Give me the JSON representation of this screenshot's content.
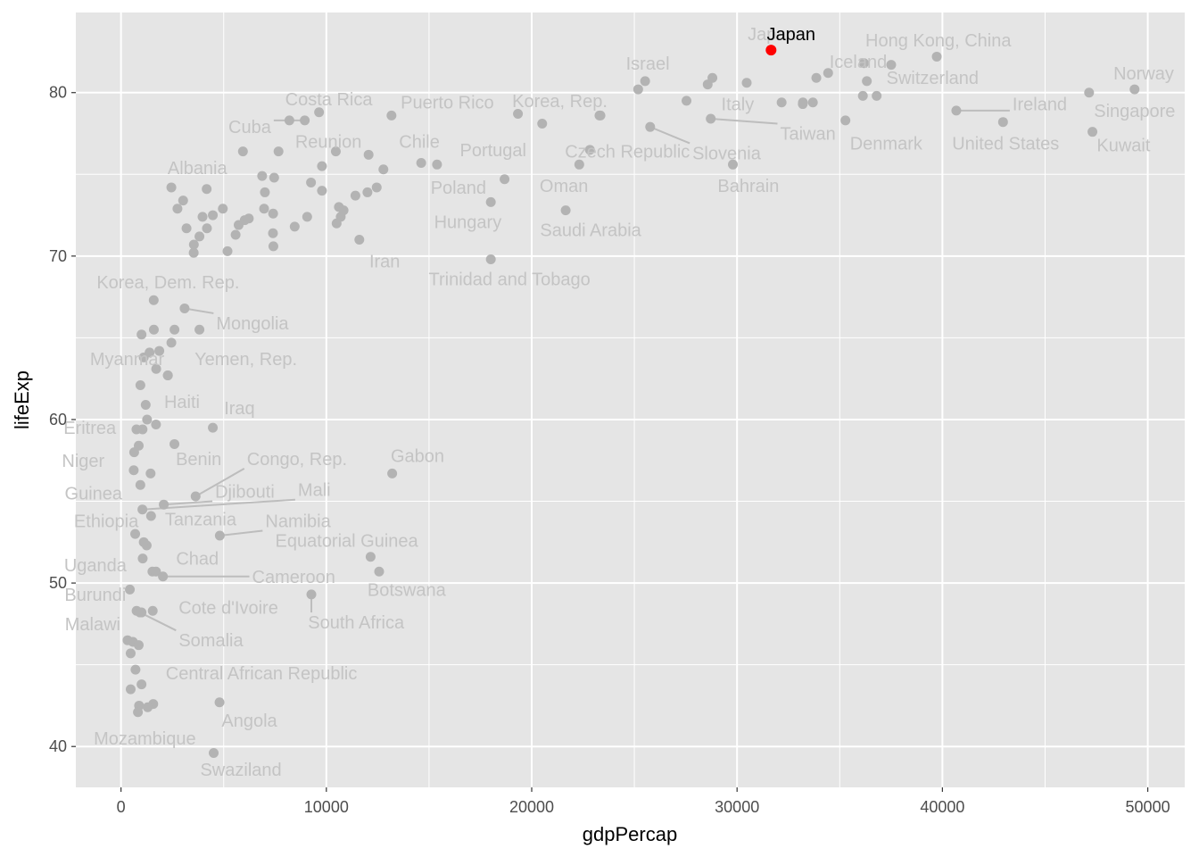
{
  "chart_data": {
    "type": "scatter",
    "title": "",
    "xlabel": "gdpPercap",
    "ylabel": "lifeExp",
    "xlim": [
      -2200,
      51800
    ],
    "ylim": [
      37.5,
      84.9
    ],
    "xticks": [
      0,
      10000,
      20000,
      30000,
      40000,
      50000
    ],
    "xtick_labels": [
      "0",
      "10000",
      "20000",
      "30000",
      "40000",
      "50000"
    ],
    "yticks": [
      40,
      50,
      60,
      70,
      80
    ],
    "ytick_labels": [
      "40",
      "50",
      "60",
      "70",
      "80"
    ],
    "grid": true,
    "legend": "none",
    "colors": {
      "panel": "#e5e5e5",
      "grid": "#ffffff",
      "point": "#b3b3b3",
      "label": "#c4c4c4",
      "segment": "#bdbdbd",
      "highlight": "#ff0000",
      "highlight_label": "#000000"
    },
    "highlight": {
      "label": "Japan",
      "x": 31656,
      "y": 82.6,
      "lx": 32630,
      "ly": 83.6
    },
    "labeled_points": [
      {
        "label": "Japan",
        "x": 31656,
        "y": 82.6,
        "lx": 31700,
        "ly": 83.6,
        "seg": false
      },
      {
        "label": "Iceland",
        "x": 36181,
        "y": 81.8,
        "lx": 35900,
        "ly": 81.9,
        "seg": false
      },
      {
        "label": "Hong Kong, China",
        "x": 39725,
        "y": 82.2,
        "lx": 39800,
        "ly": 83.2,
        "seg": false
      },
      {
        "label": "Switzerland",
        "x": 37506,
        "y": 81.7,
        "lx": 39520,
        "ly": 80.9,
        "seg": false
      },
      {
        "label": "Norway",
        "x": 49357,
        "y": 80.2,
        "lx": 49800,
        "ly": 81.2,
        "seg": false
      },
      {
        "label": "Israel",
        "x": 25523,
        "y": 80.7,
        "lx": 25650,
        "ly": 81.8,
        "seg": false
      },
      {
        "label": "Italy",
        "x": 28570,
        "y": 80.5,
        "lx": 30030,
        "ly": 79.3,
        "seg": false
      },
      {
        "label": "Singapore",
        "x": 47143,
        "y": 80.0,
        "lx": 49360,
        "ly": 78.9,
        "seg": false
      },
      {
        "label": "Ireland",
        "x": 40676,
        "y": 78.9,
        "lx": 44740,
        "ly": 79.3,
        "seg": true
      },
      {
        "label": "Denmark",
        "x": 35278,
        "y": 78.3,
        "lx": 37260,
        "ly": 76.9,
        "seg": false
      },
      {
        "label": "United States",
        "x": 42952,
        "y": 78.2,
        "lx": 43080,
        "ly": 76.9,
        "seg": false
      },
      {
        "label": "Kuwait",
        "x": 47307,
        "y": 77.6,
        "lx": 48820,
        "ly": 76.8,
        "seg": false
      },
      {
        "label": "Taiwan",
        "x": 28718,
        "y": 78.4,
        "lx": 33450,
        "ly": 77.5,
        "seg": true
      },
      {
        "label": "Slovenia",
        "x": 25768,
        "y": 77.9,
        "lx": 29490,
        "ly": 76.3,
        "seg": true
      },
      {
        "label": "Czech Republic",
        "x": 22833,
        "y": 76.5,
        "lx": 24660,
        "ly": 76.4,
        "seg": false
      },
      {
        "label": "Bahrain",
        "x": 29796,
        "y": 75.6,
        "lx": 30550,
        "ly": 74.3,
        "seg": false
      },
      {
        "label": "Korea, Rep.",
        "x": 23348,
        "y": 78.6,
        "lx": 21370,
        "ly": 79.5,
        "seg": false
      },
      {
        "label": "Puerto Rico",
        "x": 19329,
        "y": 78.7,
        "lx": 15890,
        "ly": 79.4,
        "seg": false
      },
      {
        "label": "Portugal",
        "x": 20510,
        "y": 78.1,
        "lx": 18120,
        "ly": 76.5,
        "seg": false
      },
      {
        "label": "Oman",
        "x": 22316,
        "y": 75.6,
        "lx": 21570,
        "ly": 74.3,
        "seg": false
      },
      {
        "label": "Saudi Arabia",
        "x": 21655,
        "y": 72.8,
        "lx": 22870,
        "ly": 71.6,
        "seg": false
      },
      {
        "label": "Chile",
        "x": 13172,
        "y": 78.6,
        "lx": 14530,
        "ly": 77.0,
        "seg": false
      },
      {
        "label": "Poland",
        "x": 15390,
        "y": 75.6,
        "lx": 16430,
        "ly": 74.2,
        "seg": false
      },
      {
        "label": "Hungary",
        "x": 18009,
        "y": 73.3,
        "lx": 16890,
        "ly": 72.1,
        "seg": false
      },
      {
        "label": "Trinidad and Tobago",
        "x": 18009,
        "y": 69.8,
        "lx": 18920,
        "ly": 68.6,
        "seg": false
      },
      {
        "label": "Costa Rica",
        "x": 9645,
        "y": 78.8,
        "lx": 10120,
        "ly": 79.6,
        "seg": false
      },
      {
        "label": "Cuba",
        "x": 8948,
        "y": 78.3,
        "lx": 6270,
        "ly": 77.9,
        "seg": true
      },
      {
        "label": "Reunion",
        "x": 7670,
        "y": 76.4,
        "lx": 10100,
        "ly": 77.0,
        "seg": false
      },
      {
        "label": "Albania",
        "x": 5937,
        "y": 76.4,
        "lx": 3720,
        "ly": 75.4,
        "seg": false
      },
      {
        "label": "Iran",
        "x": 11606,
        "y": 71.0,
        "lx": 12840,
        "ly": 69.7,
        "seg": false
      },
      {
        "label": "Korea, Dem. Rep.",
        "x": 1593,
        "y": 67.3,
        "lx": 2290,
        "ly": 68.4,
        "seg": false
      },
      {
        "label": "Mongolia",
        "x": 3096,
        "y": 66.8,
        "lx": 6400,
        "ly": 65.9,
        "seg": true
      },
      {
        "label": "Myanmar",
        "x": 944,
        "y": 62.1,
        "lx": 300,
        "ly": 63.7,
        "seg": false
      },
      {
        "label": "Yemen, Rep.",
        "x": 2281,
        "y": 62.7,
        "lx": 6080,
        "ly": 63.7,
        "seg": false
      },
      {
        "label": "Haiti",
        "x": 1202,
        "y": 60.9,
        "lx": 2970,
        "ly": 61.1,
        "seg": false
      },
      {
        "label": "Iraq",
        "x": 4471,
        "y": 59.5,
        "lx": 5770,
        "ly": 60.7,
        "seg": false
      },
      {
        "label": "Eritrea",
        "x": 641,
        "y": 58.0,
        "lx": -1520,
        "ly": 59.5,
        "seg": false
      },
      {
        "label": "Niger",
        "x": 620,
        "y": 56.9,
        "lx": -1840,
        "ly": 57.5,
        "seg": false
      },
      {
        "label": "Benin",
        "x": 1441,
        "y": 56.7,
        "lx": 3780,
        "ly": 57.6,
        "seg": false
      },
      {
        "label": "Congo, Rep.",
        "x": 3633,
        "y": 55.3,
        "lx": 8570,
        "ly": 57.6,
        "seg": true
      },
      {
        "label": "Gabon",
        "x": 13206,
        "y": 56.7,
        "lx": 14440,
        "ly": 57.8,
        "seg": false
      },
      {
        "label": "Guinea",
        "x": 943,
        "y": 56.0,
        "lx": -1340,
        "ly": 55.5,
        "seg": false
      },
      {
        "label": "Djibouti",
        "x": 2082,
        "y": 54.8,
        "lx": 6030,
        "ly": 55.6,
        "seg": true
      },
      {
        "label": "Mali",
        "x": 1042,
        "y": 54.5,
        "lx": 9410,
        "ly": 55.7,
        "seg": true
      },
      {
        "label": "Ethiopia",
        "x": 691,
        "y": 53.0,
        "lx": -720,
        "ly": 53.8,
        "seg": false
      },
      {
        "label": "Tanzania",
        "x": 1107,
        "y": 52.5,
        "lx": 3880,
        "ly": 53.9,
        "seg": false
      },
      {
        "label": "Namibia",
        "x": 4811,
        "y": 52.9,
        "lx": 8620,
        "ly": 53.8,
        "seg": true
      },
      {
        "label": "Equatorial Guinea",
        "x": 12154,
        "y": 51.6,
        "lx": 10990,
        "ly": 52.6,
        "seg": false
      },
      {
        "label": "Uganda",
        "x": 1056,
        "y": 51.5,
        "lx": -1250,
        "ly": 51.1,
        "seg": false
      },
      {
        "label": "Chad",
        "x": 1704,
        "y": 50.7,
        "lx": 3720,
        "ly": 51.5,
        "seg": false
      },
      {
        "label": "Cameroon",
        "x": 2042,
        "y": 50.4,
        "lx": 8410,
        "ly": 50.4,
        "seg": true
      },
      {
        "label": "Botswana",
        "x": 12570,
        "y": 50.7,
        "lx": 13910,
        "ly": 49.6,
        "seg": false
      },
      {
        "label": "Burundi",
        "x": 430,
        "y": 49.6,
        "lx": -1250,
        "ly": 49.3,
        "seg": false
      },
      {
        "label": "Cote d'Ivoire",
        "x": 1545,
        "y": 48.3,
        "lx": 5230,
        "ly": 48.5,
        "seg": false
      },
      {
        "label": "South Africa",
        "x": 9270,
        "y": 49.3,
        "lx": 11450,
        "ly": 47.6,
        "seg": true
      },
      {
        "label": "Malawi",
        "x": 759,
        "y": 48.3,
        "lx": -1380,
        "ly": 47.5,
        "seg": false
      },
      {
        "label": "Somalia",
        "x": 926,
        "y": 48.2,
        "lx": 4380,
        "ly": 46.5,
        "seg": true
      },
      {
        "label": "Central African Republic",
        "x": 706,
        "y": 44.7,
        "lx": 6840,
        "ly": 44.5,
        "seg": false
      },
      {
        "label": "Angola",
        "x": 4797,
        "y": 42.7,
        "lx": 6250,
        "ly": 41.6,
        "seg": false
      },
      {
        "label": "Mozambique",
        "x": 824,
        "y": 42.1,
        "lx": 1160,
        "ly": 40.5,
        "seg": false
      },
      {
        "label": "Swaziland",
        "x": 4513,
        "y": 39.6,
        "lx": 5840,
        "ly": 38.6,
        "seg": false
      }
    ],
    "other_points": [
      {
        "x": 25185,
        "y": 80.2
      },
      {
        "x": 28800,
        "y": 80.9
      },
      {
        "x": 30470,
        "y": 80.6
      },
      {
        "x": 33860,
        "y": 80.9
      },
      {
        "x": 34435,
        "y": 81.2
      },
      {
        "x": 36320,
        "y": 80.7
      },
      {
        "x": 36126,
        "y": 79.8
      },
      {
        "x": 36798,
        "y": 79.8
      },
      {
        "x": 27538,
        "y": 79.5
      },
      {
        "x": 32170,
        "y": 79.4
      },
      {
        "x": 33207,
        "y": 79.4
      },
      {
        "x": 33692,
        "y": 79.4
      },
      {
        "x": 33200,
        "y": 79.3
      },
      {
        "x": 23300,
        "y": 78.6
      },
      {
        "x": 8200,
        "y": 78.3
      },
      {
        "x": 10461,
        "y": 76.4
      },
      {
        "x": 12057,
        "y": 76.2
      },
      {
        "x": 9786,
        "y": 75.5
      },
      {
        "x": 12779,
        "y": 75.3
      },
      {
        "x": 14619,
        "y": 75.7
      },
      {
        "x": 18678,
        "y": 74.7
      },
      {
        "x": 6873,
        "y": 74.9
      },
      {
        "x": 7458,
        "y": 74.8
      },
      {
        "x": 9253,
        "y": 74.5
      },
      {
        "x": 7007,
        "y": 73.9
      },
      {
        "x": 9786,
        "y": 74.0
      },
      {
        "x": 11415,
        "y": 73.7
      },
      {
        "x": 12001,
        "y": 73.9
      },
      {
        "x": 12452,
        "y": 74.2
      },
      {
        "x": 10611,
        "y": 73.0
      },
      {
        "x": 10838,
        "y": 72.8
      },
      {
        "x": 10700,
        "y": 72.4
      },
      {
        "x": 10500,
        "y": 72.0
      },
      {
        "x": 9066,
        "y": 72.4
      },
      {
        "x": 8458,
        "y": 71.8
      },
      {
        "x": 7408,
        "y": 72.6
      },
      {
        "x": 6968,
        "y": 72.9
      },
      {
        "x": 7400,
        "y": 71.4
      },
      {
        "x": 7420,
        "y": 70.6
      },
      {
        "x": 5186,
        "y": 70.3
      },
      {
        "x": 5581,
        "y": 71.3
      },
      {
        "x": 5728,
        "y": 71.9
      },
      {
        "x": 6025,
        "y": 72.2
      },
      {
        "x": 6223,
        "y": 72.3
      },
      {
        "x": 4959,
        "y": 72.9
      },
      {
        "x": 4172,
        "y": 74.1
      },
      {
        "x": 2452,
        "y": 74.2
      },
      {
        "x": 3025,
        "y": 73.4
      },
      {
        "x": 2749,
        "y": 72.9
      },
      {
        "x": 3970,
        "y": 72.4
      },
      {
        "x": 4471,
        "y": 72.5
      },
      {
        "x": 3190,
        "y": 71.7
      },
      {
        "x": 4185,
        "y": 71.7
      },
      {
        "x": 3820,
        "y": 71.2
      },
      {
        "x": 3548,
        "y": 70.7
      },
      {
        "x": 3540,
        "y": 70.2
      },
      {
        "x": 1000,
        "y": 65.2
      },
      {
        "x": 1600,
        "y": 65.5
      },
      {
        "x": 2605,
        "y": 65.5
      },
      {
        "x": 3820,
        "y": 65.5
      },
      {
        "x": 1391,
        "y": 64.1
      },
      {
        "x": 1865,
        "y": 64.2
      },
      {
        "x": 2453,
        "y": 64.7
      },
      {
        "x": 1107,
        "y": 63.8
      },
      {
        "x": 1713,
        "y": 63.1
      },
      {
        "x": 2280,
        "y": 62.7
      },
      {
        "x": 1270,
        "y": 60.0
      },
      {
        "x": 1704,
        "y": 59.7
      },
      {
        "x": 1050,
        "y": 59.4
      },
      {
        "x": 752,
        "y": 59.4
      },
      {
        "x": 2602,
        "y": 58.5
      },
      {
        "x": 863,
        "y": 58.4
      },
      {
        "x": 1463,
        "y": 54.1
      },
      {
        "x": 1250,
        "y": 52.3
      },
      {
        "x": 1530,
        "y": 50.7
      },
      {
        "x": 1000,
        "y": 48.2
      },
      {
        "x": 320,
        "y": 46.5
      },
      {
        "x": 580,
        "y": 46.4
      },
      {
        "x": 862,
        "y": 46.2
      },
      {
        "x": 470,
        "y": 45.7
      },
      {
        "x": 1000,
        "y": 43.8
      },
      {
        "x": 470,
        "y": 43.5
      },
      {
        "x": 1570,
        "y": 42.6
      },
      {
        "x": 1300,
        "y": 42.4
      },
      {
        "x": 880,
        "y": 42.5
      }
    ]
  }
}
